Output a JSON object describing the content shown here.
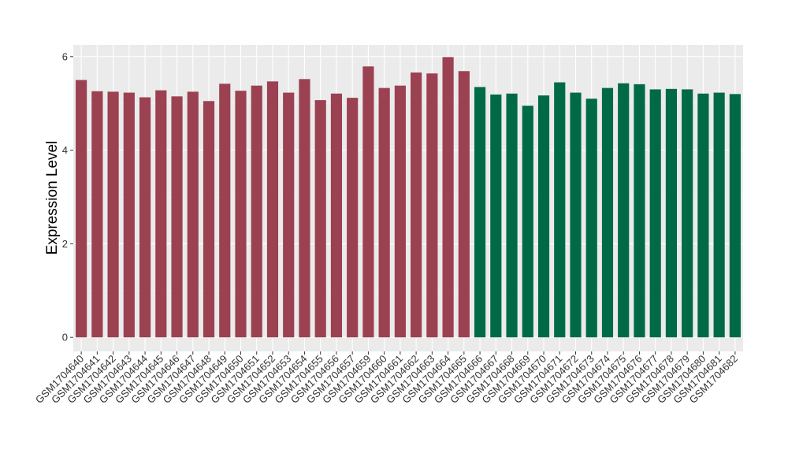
{
  "chart_data": {
    "type": "bar",
    "xlabel": "",
    "ylabel": "Expression Level",
    "ylim": [
      -0.3,
      6.25
    ],
    "yticks": [
      0,
      2,
      4,
      6
    ],
    "grid": true,
    "legend": "none",
    "colors": {
      "group1": "#9b4151",
      "group2": "#006a47",
      "panel": "#ebebeb",
      "grid": "#ffffff"
    },
    "categories": [
      "GSM1704640",
      "GSM1704641",
      "GSM1704642",
      "GSM1704643",
      "GSM1704644",
      "GSM1704645",
      "GSM1704646",
      "GSM1704647",
      "GSM1704648",
      "GSM1704649",
      "GSM1704650",
      "GSM1704651",
      "GSM1704652",
      "GSM1704653",
      "GSM1704654",
      "GSM1704655",
      "GSM1704656",
      "GSM1704657",
      "GSM1704659",
      "GSM1704660",
      "GSM1704661",
      "GSM1704662",
      "GSM1704663",
      "GSM1704664",
      "GSM1704665",
      "GSM1704666",
      "GSM1704667",
      "GSM1704668",
      "GSM1704669",
      "GSM1704670",
      "GSM1704671",
      "GSM1704672",
      "GSM1704673",
      "GSM1704674",
      "GSM1704675",
      "GSM1704676",
      "GSM1704677",
      "GSM1704678",
      "GSM1704679",
      "GSM1704680",
      "GSM1704681",
      "GSM1704682"
    ],
    "values": [
      5.5,
      5.26,
      5.25,
      5.23,
      5.13,
      5.28,
      5.15,
      5.25,
      5.05,
      5.42,
      5.27,
      5.38,
      5.47,
      5.23,
      5.52,
      5.07,
      5.21,
      5.12,
      5.79,
      5.33,
      5.38,
      5.66,
      5.64,
      5.99,
      5.69,
      5.35,
      5.19,
      5.21,
      4.95,
      5.17,
      5.45,
      5.23,
      5.1,
      5.33,
      5.43,
      5.41,
      5.3,
      5.31,
      5.3,
      5.21,
      5.23,
      5.2
    ],
    "group_of_bar": [
      1,
      1,
      1,
      1,
      1,
      1,
      1,
      1,
      1,
      1,
      1,
      1,
      1,
      1,
      1,
      1,
      1,
      1,
      1,
      1,
      1,
      1,
      1,
      1,
      1,
      2,
      2,
      2,
      2,
      2,
      2,
      2,
      2,
      2,
      2,
      2,
      2,
      2,
      2,
      2,
      2,
      2
    ]
  }
}
